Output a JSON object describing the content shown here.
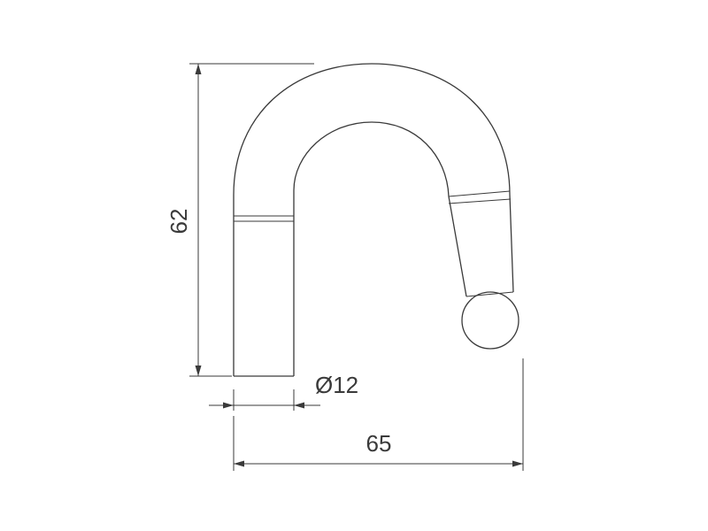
{
  "dimensions": {
    "height_label": "62",
    "diameter_label": "Ø12",
    "width_label": "65"
  },
  "colors": {
    "line": "#3a3a3a",
    "background": "#ffffff"
  }
}
